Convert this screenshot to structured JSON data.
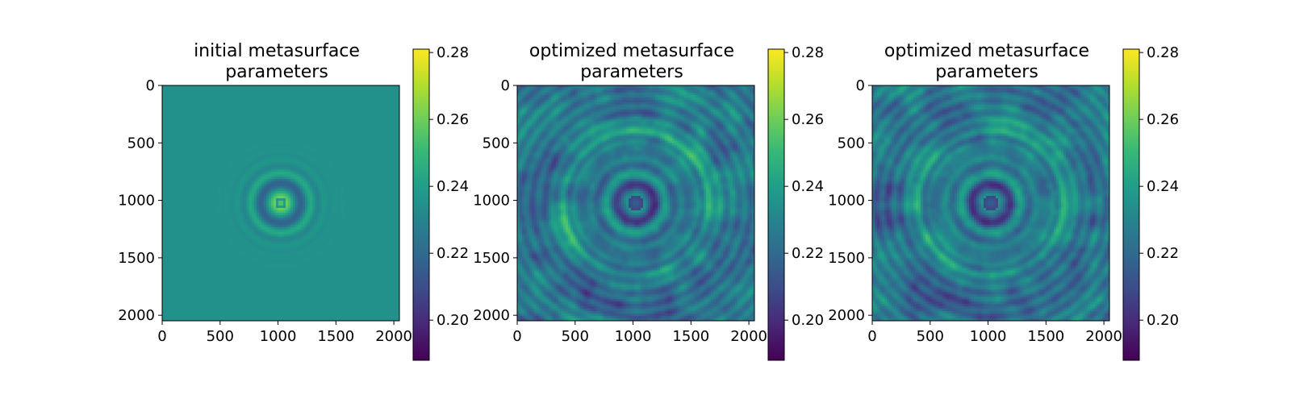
{
  "chart_data": [
    {
      "type": "heatmap",
      "title_lines": [
        "initial metasurface",
        "parameters"
      ],
      "xlabel": "",
      "ylabel": "",
      "xlim": [
        0,
        2048
      ],
      "ylim": [
        2048,
        0
      ],
      "x_ticks": [
        0,
        500,
        1000,
        1500,
        2000
      ],
      "y_ticks": [
        0,
        500,
        1000,
        1500,
        2000
      ],
      "colormap": "viridis",
      "color_range": [
        0.188,
        0.281
      ],
      "colorbar_ticks": [
        "0.20",
        "0.22",
        "0.24",
        "0.26",
        "0.28"
      ],
      "colorbar_tick_values": [
        0.2,
        0.22,
        0.24,
        0.26,
        0.28
      ],
      "pattern": "concentric rings centered near (1024, 1024); central spot ~0.25 with bright rings up to ~0.27 and dark rings ~0.21; background uniform ~0.235"
    },
    {
      "type": "heatmap",
      "title_lines": [
        "optimized metasurface",
        "parameters"
      ],
      "xlabel": "",
      "ylabel": "",
      "xlim": [
        0,
        2048
      ],
      "ylim": [
        2048,
        0
      ],
      "x_ticks": [
        0,
        500,
        1000,
        1500,
        2000
      ],
      "y_ticks": [
        0,
        500,
        1000,
        1500,
        2000
      ],
      "colormap": "viridis",
      "color_range": [
        0.188,
        0.281
      ],
      "colorbar_ticks": [
        "0.20",
        "0.22",
        "0.24",
        "0.26",
        "0.28"
      ],
      "colorbar_tick_values": [
        0.2,
        0.22,
        0.24,
        0.26,
        0.28
      ],
      "pattern": "concentric rings centered near (1024, 1024) with dark center ~0.21, bright ring band near radius ~650, textured background 0.21–0.25"
    },
    {
      "type": "heatmap",
      "title_lines": [
        "optimized metasurface",
        "parameters"
      ],
      "xlabel": "",
      "ylabel": "",
      "xlim": [
        0,
        2048
      ],
      "ylim": [
        2048,
        0
      ],
      "x_ticks": [
        0,
        500,
        1000,
        1500,
        2000
      ],
      "y_ticks": [
        0,
        500,
        1000,
        1500,
        2000
      ],
      "colormap": "viridis",
      "color_range": [
        0.188,
        0.281
      ],
      "colorbar_ticks": [
        "0.20",
        "0.22",
        "0.24",
        "0.26",
        "0.28"
      ],
      "colorbar_tick_values": [
        0.2,
        0.22,
        0.24,
        0.26,
        0.28
      ],
      "pattern": "concentric rings centered near (1024, 1024) with dark center ~0.21, bright ring band near radius ~650, textured background 0.21–0.25"
    }
  ],
  "colors": {
    "viridis_stops": [
      "#440154",
      "#482777",
      "#3e4989",
      "#31688e",
      "#26828e",
      "#1f9e89",
      "#35b779",
      "#6ece58",
      "#b5de2b",
      "#fde725"
    ],
    "axis": "#000000",
    "background": "#ffffff"
  }
}
